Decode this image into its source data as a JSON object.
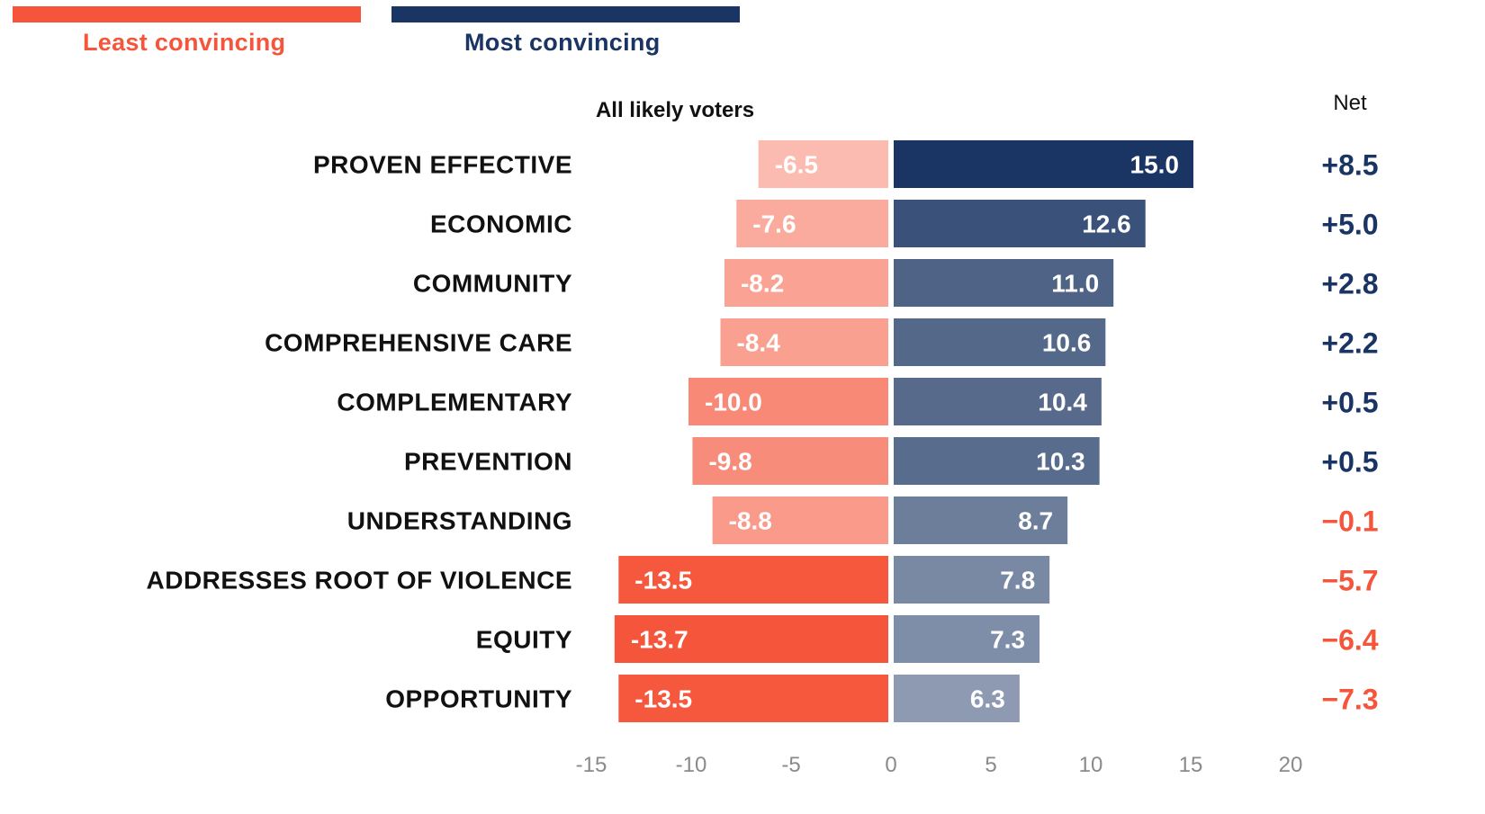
{
  "legend": {
    "least_label": "Least convincing",
    "most_label": "Most convincing"
  },
  "colors": {
    "least": "#f5553a",
    "most": "#1a3563",
    "tick": "#8a8a8a",
    "net_positive": "#1a3563",
    "net_negative": "#f5553a"
  },
  "chart_data": {
    "type": "bar",
    "orientation": "horizontal-diverging",
    "subtitle": "All likely voters",
    "net_header": "Net",
    "categories": [
      "PROVEN EFFECTIVE",
      "ECONOMIC",
      "COMMUNITY",
      "COMPREHENSIVE CARE",
      "COMPLEMENTARY",
      "PREVENTION",
      "UNDERSTANDING",
      "ADDRESSES ROOT OF VIOLENCE",
      "EQUITY",
      "OPPORTUNITY"
    ],
    "series": [
      {
        "name": "Least convincing",
        "values": [
          -6.5,
          -7.6,
          -8.2,
          -8.4,
          -10.0,
          -9.8,
          -8.8,
          -13.5,
          -13.7,
          -13.5
        ],
        "labels": [
          "-6.5",
          "-7.6",
          "-8.2",
          "-8.4",
          "-10.0",
          "-9.8",
          "-8.8",
          "-13.5",
          "-13.7",
          "-13.5"
        ]
      },
      {
        "name": "Most convincing",
        "values": [
          15.0,
          12.6,
          11.0,
          10.6,
          10.4,
          10.3,
          8.7,
          7.8,
          7.3,
          6.3
        ],
        "labels": [
          "15.0",
          "12.6",
          "11.0",
          "10.6",
          "10.4",
          "10.3",
          "8.7",
          "7.8",
          "7.3",
          "6.3"
        ]
      }
    ],
    "net": [
      8.5,
      5.0,
      2.8,
      2.2,
      0.5,
      0.5,
      -0.1,
      -5.7,
      -6.4,
      -7.3
    ],
    "net_labels": [
      "+8.5",
      "+5.0",
      "+2.8",
      "+2.2",
      "+0.5",
      "+0.5",
      "−0.1",
      "−5.7",
      "−6.4",
      "−7.3"
    ],
    "xlim": [
      -15,
      20
    ],
    "xticks": [
      -15,
      -10,
      -5,
      0,
      5,
      10,
      15,
      20
    ],
    "xtick_labels": [
      "-15",
      "-10",
      "-5",
      "0",
      "5",
      "10",
      "15",
      "20"
    ],
    "grid": false,
    "legend_position": "top-left"
  }
}
